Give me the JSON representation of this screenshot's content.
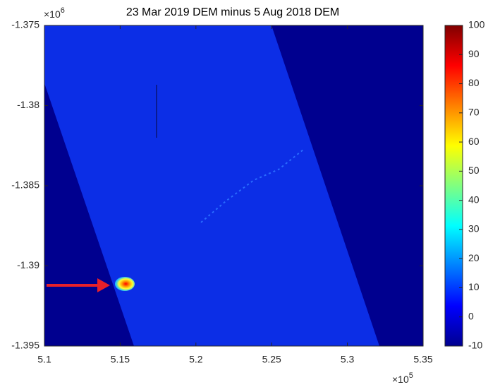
{
  "chart_data": {
    "type": "image",
    "title": "23 Mar 2019 DEM minus 5 Aug 2018 DEM",
    "xlim": [
      5.1,
      5.35
    ],
    "xticks": [
      5.1,
      5.15,
      5.2,
      5.25,
      5.3,
      5.35
    ],
    "ylim": [
      -1.395,
      -1.375
    ],
    "yticks": [
      -1.395,
      -1.39,
      -1.385,
      -1.38,
      -1.375
    ],
    "x_exponent": {
      "base": "×10",
      "power": "5"
    },
    "y_exponent": {
      "base": "×10",
      "power": "6"
    },
    "clim": [
      -10,
      100
    ],
    "cticks": [
      -10,
      0,
      10,
      20,
      30,
      40,
      50,
      60,
      70,
      80,
      90,
      100
    ],
    "colormap": [
      "#00008f",
      "#0000ff",
      "#0080ff",
      "#00ffff",
      "#80ff80",
      "#ffff00",
      "#ff8000",
      "#ff0000",
      "#800000"
    ]
  }
}
